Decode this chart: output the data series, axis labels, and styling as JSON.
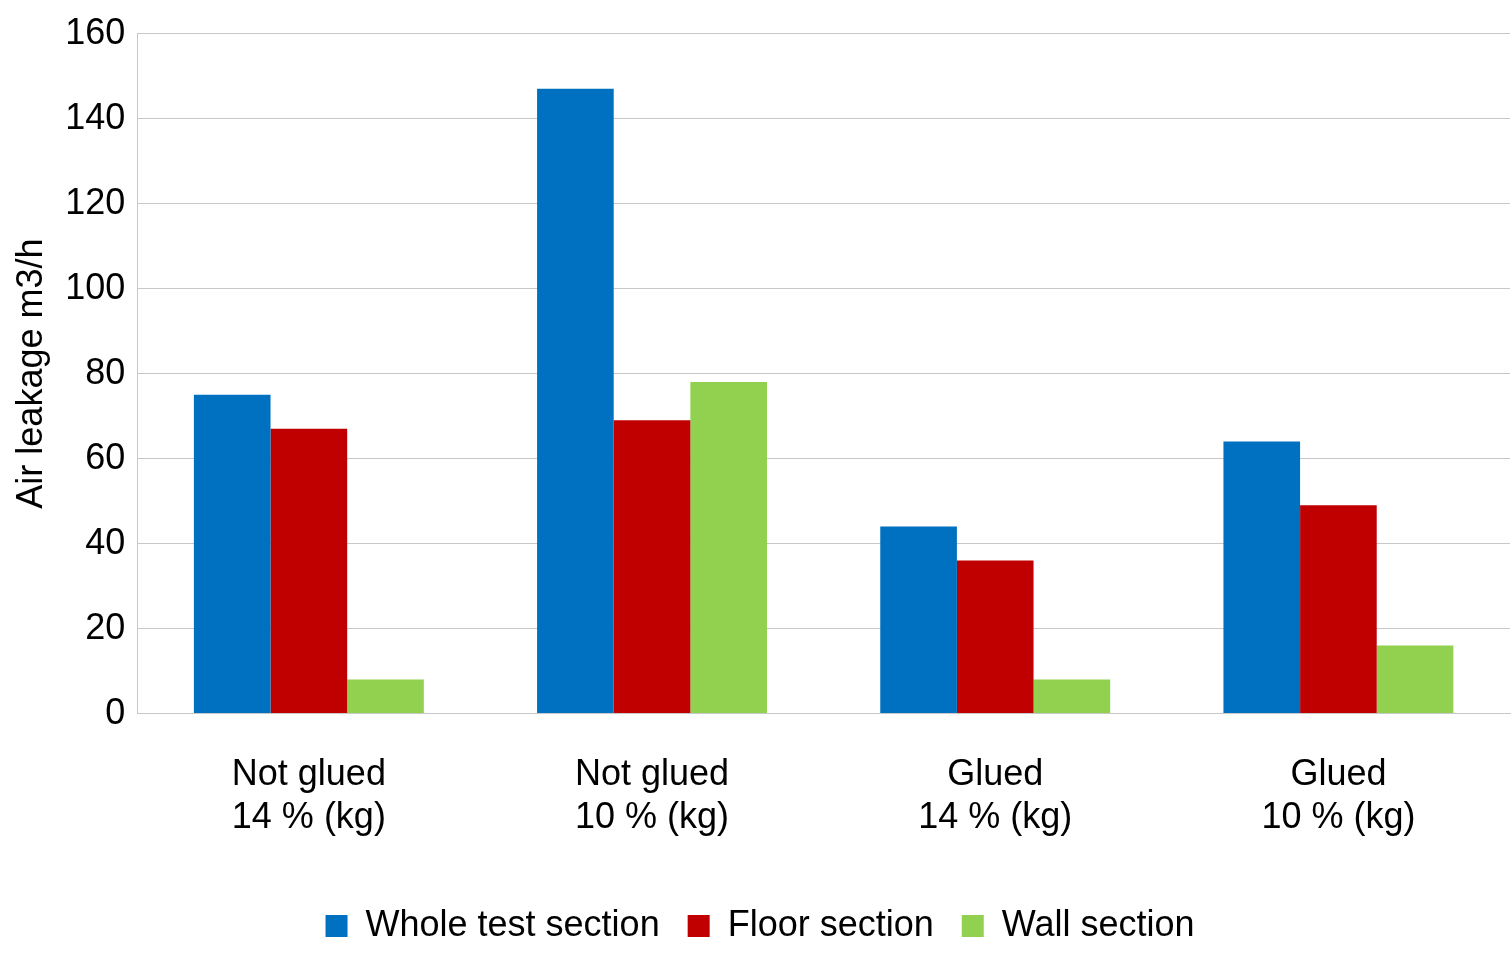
{
  "chart_data": {
    "type": "bar",
    "ylabel": "Air leakage m3/h",
    "categories": [
      "Not glued\n14 % (kg)",
      "Not glued\n10 % (kg)",
      "Glued\n14 % (kg)",
      "Glued\n10 % (kg)"
    ],
    "series": [
      {
        "name": "Whole test section",
        "color": "#0070c0",
        "values": [
          75,
          147,
          44,
          64
        ]
      },
      {
        "name": "Floor section",
        "color": "#c00000",
        "values": [
          67,
          69,
          36,
          49
        ]
      },
      {
        "name": "Wall section",
        "color": "#92d050",
        "values": [
          8,
          78,
          8,
          16
        ]
      }
    ],
    "ylim": [
      0,
      160
    ],
    "yticks": [
      0,
      20,
      40,
      60,
      80,
      100,
      120,
      140,
      160
    ],
    "grid": "y",
    "legend": "bottom"
  }
}
